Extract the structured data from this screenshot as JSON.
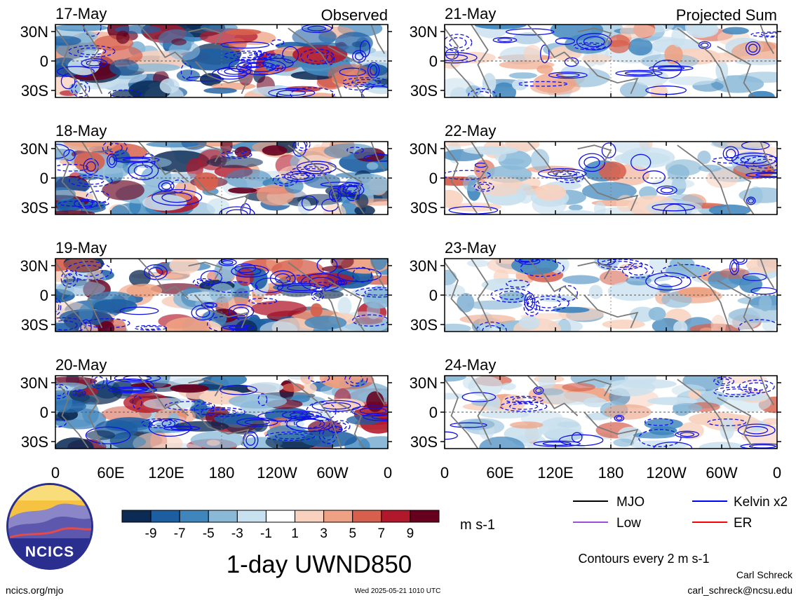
{
  "columns": {
    "observed": {
      "label": "Observed",
      "dates": [
        "17-May",
        "18-May",
        "19-May",
        "20-May"
      ]
    },
    "projected": {
      "label": "Projected Sum",
      "dates": [
        "21-May",
        "22-May",
        "23-May",
        "24-May"
      ]
    }
  },
  "lat_labels": [
    "30N",
    "0",
    "30S"
  ],
  "lon_labels": [
    "0",
    "60E",
    "120E",
    "180",
    "120W",
    "60W",
    "0"
  ],
  "colorbar": {
    "tick_labels": [
      "-9",
      "-7",
      "-5",
      "-3",
      "-1",
      "1",
      "3",
      "5",
      "7",
      "9"
    ],
    "colors": [
      "#0b2b55",
      "#1d5ea3",
      "#3f86bd",
      "#8ab9d8",
      "#c9e0ee",
      "#ffffff",
      "#f8d2bf",
      "#eea283",
      "#d6604d",
      "#b2182b",
      "#67001f"
    ],
    "units": "m s-1"
  },
  "legend": {
    "items": [
      {
        "label": "MJO",
        "color": "#000000"
      },
      {
        "label": "Kelvin x2",
        "color": "#0000ff"
      },
      {
        "label": "Low",
        "color": "#9a4fd6"
      },
      {
        "label": "ER",
        "color": "#ff0000"
      }
    ],
    "note": "Contours every 2 m s-1"
  },
  "title": "1-day UWND850",
  "logo": {
    "text": "NCICS"
  },
  "footer": {
    "left": "ncics.org/mjo",
    "center": "Wed 2025-05-21 1010 UTC",
    "author": "Carl Schreck",
    "email": "carl_schreck@ncsu.edu"
  }
}
